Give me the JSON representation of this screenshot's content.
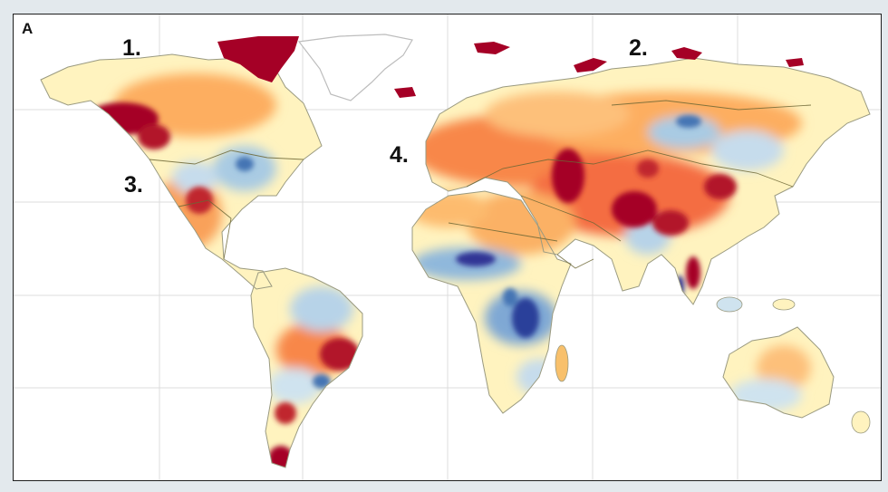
{
  "figure": {
    "panel_label": "A",
    "background_color": "#e3e9ed"
  },
  "map": {
    "type": "world-choropleth",
    "region_markers": [
      "1.",
      "2.",
      "3.",
      "4."
    ],
    "colors": {
      "strong_increase": "#a50026",
      "increase": "#e4602e",
      "moderate": "#fdae61",
      "neutral": "#fff6c4",
      "slight_decrease": "#cfe3ef",
      "decrease": "#7fb0d6",
      "strong_decrease": "#2a3f9a",
      "no_data": "#ffffff",
      "coastline": "#b8b8b8",
      "border": "#5a5630",
      "gridline": "#dcdcdc"
    }
  }
}
